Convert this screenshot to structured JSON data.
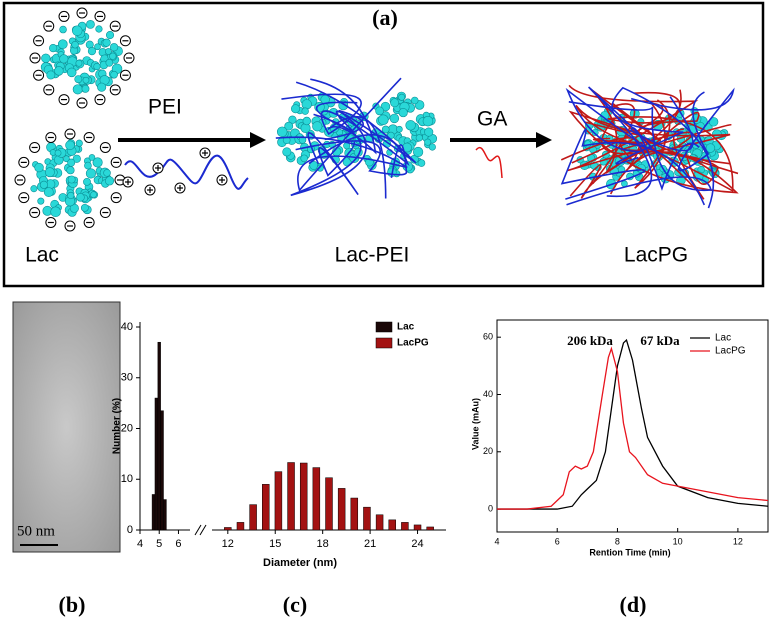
{
  "panel_a": {
    "label": "(a)",
    "reagent_1": "PEI",
    "reagent_2": "GA",
    "stage_1": "Lac",
    "stage_2": "Lac-PEI",
    "stage_3": "LacPG"
  },
  "panel_b": {
    "label": "(b)",
    "scale_bar": "50 nm"
  },
  "panel_c": {
    "label": "(c)"
  },
  "panel_d": {
    "label": "(d)"
  },
  "chart_data": [
    {
      "type": "bar",
      "ylabel": "Number (%)",
      "xlabel": "Diameter (nm)",
      "ylim": [
        0,
        40
      ],
      "yticks": [
        0,
        10,
        20,
        30,
        40
      ],
      "x_segments": [
        {
          "xlim": [
            4,
            6.6
          ],
          "xticks": [
            4,
            5,
            6
          ]
        },
        {
          "xlim": [
            11,
            25.8
          ],
          "xticks": [
            12,
            15,
            18,
            21,
            24
          ]
        }
      ],
      "legend": "upper right",
      "series": [
        {
          "name": "Lac",
          "color": "#1a0808",
          "x": [
            4.7,
            4.85,
            5.0,
            5.15,
            5.3
          ],
          "values": [
            7,
            26,
            37,
            23.5,
            6
          ]
        },
        {
          "name": "LacPG",
          "color": "#a31212",
          "x": [
            12,
            12.8,
            13.6,
            14.4,
            15.2,
            16,
            16.8,
            17.6,
            18.4,
            19.2,
            20,
            20.8,
            21.6,
            22.4,
            23.2,
            24,
            24.8
          ],
          "values": [
            0.5,
            1.5,
            5,
            9,
            11.5,
            13.3,
            13.2,
            12.3,
            10.3,
            8.2,
            6.3,
            4.5,
            3,
            2,
            1.5,
            1,
            0.6
          ]
        }
      ]
    },
    {
      "type": "line",
      "ylabel": "Value (mAu)",
      "xlabel": "Rention Time (min)",
      "xlim": [
        4,
        13
      ],
      "xticks": [
        4,
        6,
        8,
        10,
        12
      ],
      "ylim": [
        -8,
        66
      ],
      "yticks": [
        0,
        20,
        40,
        60
      ],
      "legend": "upper right",
      "annotations": [
        "206 kDa",
        "67 kDa"
      ],
      "series": [
        {
          "name": "Lac",
          "color": "#000000",
          "x": [
            4,
            5,
            6,
            6.5,
            6.8,
            7,
            7.3,
            7.6,
            7.8,
            8,
            8.2,
            8.3,
            8.5,
            8.8,
            9,
            9.5,
            10,
            11,
            12,
            13
          ],
          "values": [
            0,
            0,
            0,
            1,
            5,
            7,
            10,
            20,
            35,
            50,
            58,
            59,
            52,
            35,
            25,
            15,
            8,
            4,
            2,
            1
          ]
        },
        {
          "name": "LacPG",
          "color": "#e8141e",
          "x": [
            4,
            5,
            5.8,
            6.2,
            6.4,
            6.6,
            6.8,
            7,
            7.2,
            7.5,
            7.7,
            7.8,
            8,
            8.2,
            8.4,
            8.6,
            9,
            9.5,
            10,
            11,
            12,
            13
          ],
          "values": [
            0,
            0,
            1,
            5,
            13,
            15,
            14,
            15,
            20,
            40,
            53,
            56,
            48,
            30,
            20,
            18,
            12,
            9,
            8,
            6,
            4,
            3
          ]
        }
      ]
    }
  ]
}
